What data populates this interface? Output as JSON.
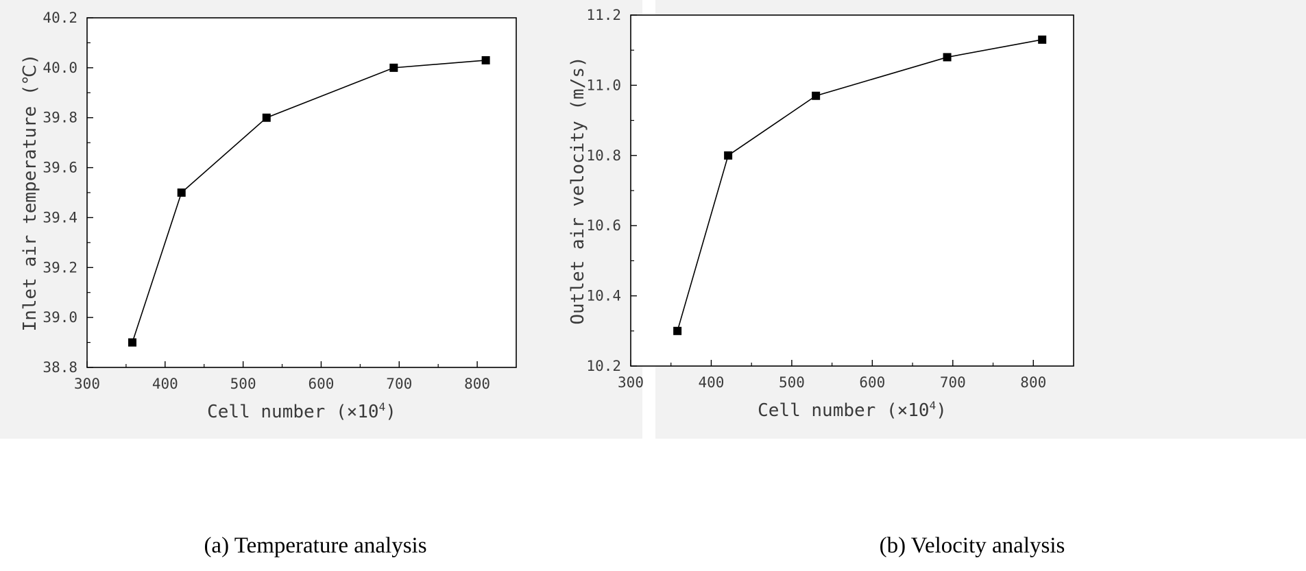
{
  "chart_data": [
    {
      "type": "line",
      "title": "",
      "xlabel": "Cell number (×10",
      "xlabel_sup": "4",
      "xlabel_close": ")",
      "ylabel": "Inlet air temperature (℃)",
      "xlim": [
        300,
        850
      ],
      "ylim": [
        38.8,
        40.2
      ],
      "xticks": [
        300,
        400,
        500,
        600,
        700,
        800
      ],
      "yticks": [
        38.8,
        39.0,
        39.2,
        39.4,
        39.6,
        39.8,
        40.0,
        40.2
      ],
      "x_tick_labels": [
        "300",
        "400",
        "500",
        "600",
        "700",
        "800"
      ],
      "y_tick_labels": [
        "38.8",
        "39.0",
        "39.2",
        "39.4",
        "39.6",
        "39.8",
        "40.0",
        "40.2"
      ],
      "series": [
        {
          "name": "Inlet air temperature",
          "x": [
            358,
            421,
            530,
            693,
            811
          ],
          "y": [
            38.9,
            39.5,
            39.8,
            40.0,
            40.03
          ],
          "color": "#000000",
          "marker": "square"
        }
      ],
      "caption": "(a) Temperature analysis"
    },
    {
      "type": "line",
      "title": "",
      "xlabel": "Cell number (×10",
      "xlabel_sup": "4",
      "xlabel_close": ")",
      "ylabel": "Outlet air velocity (m/s)",
      "xlim": [
        300,
        850
      ],
      "ylim": [
        10.2,
        11.2
      ],
      "xticks": [
        300,
        400,
        500,
        600,
        700,
        800
      ],
      "yticks": [
        10.2,
        10.4,
        10.6,
        10.8,
        11.0,
        11.2
      ],
      "x_tick_labels": [
        "300",
        "400",
        "500",
        "600",
        "700",
        "800"
      ],
      "y_tick_labels": [
        "10.2",
        "10.4",
        "10.6",
        "10.8",
        "11.0",
        "11.2"
      ],
      "series": [
        {
          "name": "Outlet air velocity",
          "x": [
            358,
            421,
            530,
            693,
            811
          ],
          "y": [
            10.3,
            10.8,
            10.97,
            11.08,
            11.13
          ],
          "color": "#000000",
          "marker": "square"
        }
      ],
      "caption": "(b) Velocity analysis"
    }
  ]
}
